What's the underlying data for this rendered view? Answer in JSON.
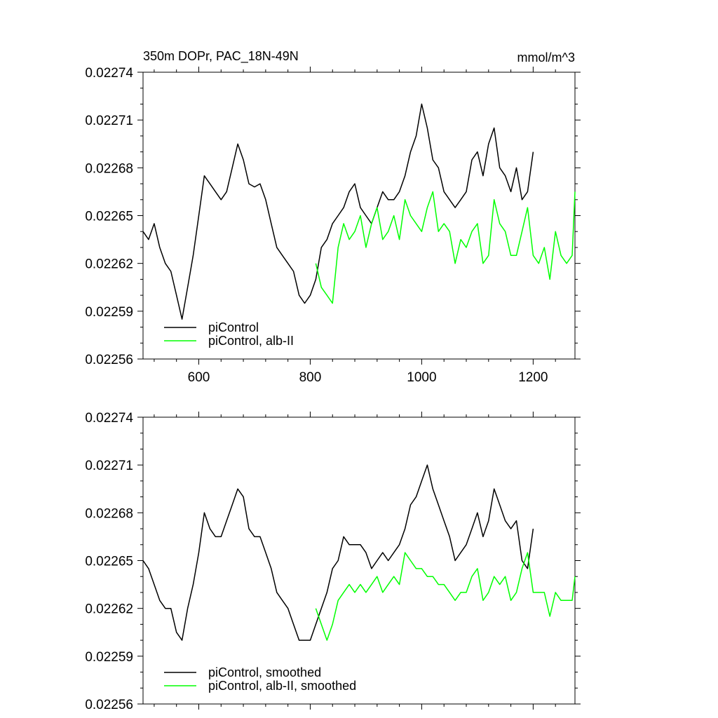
{
  "chart_data": [
    {
      "type": "line",
      "title": "350m DOPr, PAC_18N-49N",
      "units": "mmol/m^3",
      "xlim": [
        500,
        1275
      ],
      "ylim": [
        0.02256,
        0.02274
      ],
      "xticks": [
        600,
        800,
        1000,
        1200
      ],
      "xtick_labels": [
        "600",
        "800",
        "1000",
        "1200"
      ],
      "yticks": [
        0.02256,
        0.02259,
        0.02262,
        0.02265,
        0.02268,
        0.02271,
        0.02274
      ],
      "ytick_labels": [
        "0.02256",
        "0.02259",
        "0.02262",
        "0.02265",
        "0.02268",
        "0.02271",
        "0.02274"
      ],
      "legend": "bottom-left",
      "series": [
        {
          "name": "piControl",
          "color": "#000000",
          "x": [
            500,
            510,
            520,
            530,
            540,
            550,
            560,
            570,
            580,
            590,
            600,
            610,
            620,
            630,
            640,
            650,
            660,
            670,
            680,
            690,
            700,
            710,
            720,
            730,
            740,
            750,
            760,
            770,
            780,
            790,
            800,
            810,
            820,
            830,
            840,
            850,
            860,
            870,
            880,
            890,
            900,
            910,
            920,
            930,
            940,
            950,
            960,
            970,
            980,
            990,
            1000,
            1010,
            1020,
            1030,
            1040,
            1050,
            1060,
            1070,
            1080,
            1090,
            1100,
            1110,
            1120,
            1130,
            1140,
            1150,
            1160,
            1170,
            1180,
            1190,
            1200
          ],
          "values": [
            0.02264,
            0.022635,
            0.022645,
            0.02263,
            0.02262,
            0.022615,
            0.0226,
            0.022585,
            0.022605,
            0.022625,
            0.02265,
            0.022675,
            0.02267,
            0.022665,
            0.02266,
            0.022665,
            0.02268,
            0.022695,
            0.022685,
            0.02267,
            0.022668,
            0.02267,
            0.02266,
            0.022645,
            0.02263,
            0.022625,
            0.02262,
            0.022615,
            0.0226,
            0.022595,
            0.0226,
            0.02261,
            0.02263,
            0.022635,
            0.022645,
            0.02265,
            0.022655,
            0.022665,
            0.02267,
            0.022655,
            0.02265,
            0.022645,
            0.022655,
            0.022665,
            0.02266,
            0.02266,
            0.022665,
            0.022675,
            0.02269,
            0.0227,
            0.02272,
            0.022705,
            0.022685,
            0.02268,
            0.022665,
            0.02266,
            0.022655,
            0.02266,
            0.022665,
            0.022685,
            0.02269,
            0.022675,
            0.022695,
            0.022705,
            0.02268,
            0.022675,
            0.022665,
            0.02268,
            0.02266,
            0.022665,
            0.02269
          ]
        },
        {
          "name": "piControl, alb-II",
          "color": "#00ff00",
          "x": [
            810,
            820,
            830,
            840,
            850,
            860,
            870,
            880,
            890,
            900,
            910,
            920,
            930,
            940,
            950,
            960,
            970,
            980,
            990,
            1000,
            1010,
            1020,
            1030,
            1040,
            1050,
            1060,
            1070,
            1080,
            1090,
            1100,
            1110,
            1120,
            1130,
            1140,
            1150,
            1160,
            1170,
            1180,
            1190,
            1200,
            1210,
            1220,
            1230,
            1240,
            1250,
            1260,
            1270,
            1275
          ],
          "values": [
            0.02262,
            0.022605,
            0.0226,
            0.022595,
            0.02263,
            0.022645,
            0.022635,
            0.02264,
            0.02265,
            0.02263,
            0.022645,
            0.022655,
            0.022635,
            0.02264,
            0.02265,
            0.022635,
            0.02266,
            0.02265,
            0.022645,
            0.02264,
            0.022655,
            0.022665,
            0.02264,
            0.022645,
            0.02264,
            0.02262,
            0.022635,
            0.02263,
            0.02264,
            0.022645,
            0.02262,
            0.022625,
            0.02266,
            0.022645,
            0.02264,
            0.022625,
            0.022625,
            0.02264,
            0.022655,
            0.022625,
            0.02262,
            0.02263,
            0.02261,
            0.02264,
            0.022625,
            0.02262,
            0.022625,
            0.022665
          ]
        }
      ]
    },
    {
      "type": "line",
      "title": "",
      "units": "",
      "xlim": [
        500,
        1275
      ],
      "ylim": [
        0.02256,
        0.02274
      ],
      "xticks": [
        600,
        800,
        1000,
        1200
      ],
      "xtick_labels": [],
      "yticks": [
        0.02256,
        0.02259,
        0.02262,
        0.02265,
        0.02268,
        0.02271,
        0.02274
      ],
      "ytick_labels": [
        "0.02256",
        "0.02259",
        "0.02262",
        "0.02265",
        "0.02268",
        "0.02271",
        "0.02274"
      ],
      "legend": "bottom-left",
      "series": [
        {
          "name": "piControl, smoothed",
          "color": "#000000",
          "x": [
            500,
            510,
            520,
            530,
            540,
            550,
            560,
            570,
            580,
            590,
            600,
            610,
            620,
            630,
            640,
            650,
            660,
            670,
            680,
            690,
            700,
            710,
            720,
            730,
            740,
            750,
            760,
            770,
            780,
            790,
            800,
            810,
            820,
            830,
            840,
            850,
            860,
            870,
            880,
            890,
            900,
            910,
            920,
            930,
            940,
            950,
            960,
            970,
            980,
            990,
            1000,
            1010,
            1020,
            1030,
            1040,
            1050,
            1060,
            1070,
            1080,
            1090,
            1100,
            1110,
            1120,
            1130,
            1140,
            1150,
            1160,
            1170,
            1180,
            1190,
            1200
          ],
          "values": [
            0.02265,
            0.022645,
            0.022635,
            0.022625,
            0.02262,
            0.02262,
            0.022605,
            0.0226,
            0.02262,
            0.022635,
            0.022655,
            0.02268,
            0.02267,
            0.022665,
            0.022665,
            0.022675,
            0.022685,
            0.022695,
            0.02269,
            0.02267,
            0.022665,
            0.022665,
            0.022655,
            0.022645,
            0.02263,
            0.022625,
            0.02262,
            0.02261,
            0.0226,
            0.0226,
            0.0226,
            0.02261,
            0.02262,
            0.02263,
            0.022645,
            0.02265,
            0.022665,
            0.02266,
            0.02266,
            0.02266,
            0.022655,
            0.022645,
            0.02265,
            0.022655,
            0.02265,
            0.022655,
            0.02266,
            0.02267,
            0.022685,
            0.02269,
            0.0227,
            0.02271,
            0.022695,
            0.022685,
            0.022675,
            0.022665,
            0.02265,
            0.022655,
            0.02266,
            0.02267,
            0.02268,
            0.022665,
            0.022675,
            0.022695,
            0.022685,
            0.022675,
            0.02267,
            0.022675,
            0.02265,
            0.022645,
            0.02267
          ]
        },
        {
          "name": "piControl, alb-II, smoothed",
          "color": "#00ff00",
          "x": [
            810,
            820,
            830,
            840,
            850,
            860,
            870,
            880,
            890,
            900,
            910,
            920,
            930,
            940,
            950,
            960,
            970,
            980,
            990,
            1000,
            1010,
            1020,
            1030,
            1040,
            1050,
            1060,
            1070,
            1080,
            1090,
            1100,
            1110,
            1120,
            1130,
            1140,
            1150,
            1160,
            1170,
            1180,
            1190,
            1200,
            1210,
            1220,
            1230,
            1240,
            1250,
            1260,
            1270,
            1275
          ],
          "values": [
            0.02262,
            0.02261,
            0.0226,
            0.02261,
            0.022625,
            0.02263,
            0.022635,
            0.02263,
            0.022635,
            0.02263,
            0.022635,
            0.02264,
            0.02263,
            0.022635,
            0.02264,
            0.022635,
            0.022655,
            0.02265,
            0.022645,
            0.022645,
            0.02264,
            0.02264,
            0.022635,
            0.022635,
            0.02263,
            0.022625,
            0.02263,
            0.02263,
            0.02264,
            0.022645,
            0.022625,
            0.02263,
            0.02264,
            0.022635,
            0.02264,
            0.022625,
            0.02263,
            0.022645,
            0.022655,
            0.02263,
            0.02263,
            0.02263,
            0.022615,
            0.02263,
            0.022625,
            0.022625,
            0.022625,
            0.02264
          ]
        }
      ]
    }
  ]
}
